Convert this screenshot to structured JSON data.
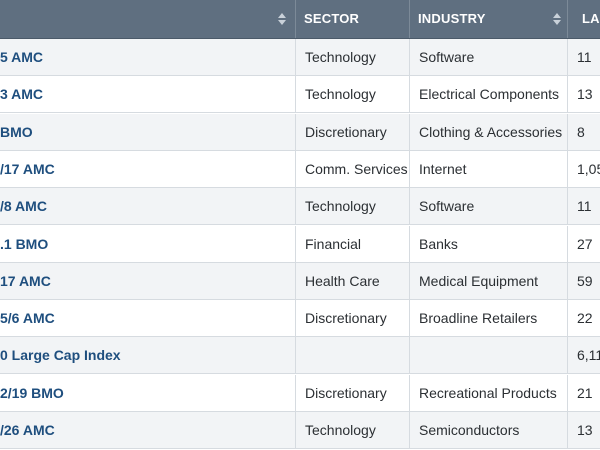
{
  "table": {
    "columns": [
      {
        "key": "name",
        "label": ""
      },
      {
        "key": "sector",
        "label": "SECTOR"
      },
      {
        "key": "industry",
        "label": "INDUSTRY"
      },
      {
        "key": "last",
        "label": "LA"
      }
    ],
    "rows": [
      {
        "name": "5 AMC",
        "sector": "Technology",
        "industry": "Software",
        "last": "11"
      },
      {
        "name": "3 AMC",
        "sector": "Technology",
        "industry": "Electrical Components",
        "last": "13"
      },
      {
        "name": " BMO",
        "sector": "Discretionary",
        "industry": "Clothing & Accessories",
        "last": "8"
      },
      {
        "name": "/17 AMC",
        "sector": "Comm. Services",
        "industry": "Internet",
        "last": "1,05"
      },
      {
        "name": "/8 AMC",
        "sector": "Technology",
        "industry": "Software",
        "last": "11"
      },
      {
        "name": ".1 BMO",
        "sector": "Financial",
        "industry": "Banks",
        "last": "27"
      },
      {
        "name": "17 AMC",
        "sector": "Health Care",
        "industry": "Medical Equipment",
        "last": "59"
      },
      {
        "name": "5/6 AMC",
        "sector": "Discretionary",
        "industry": "Broadline Retailers",
        "last": "22"
      },
      {
        "name": "0 Large Cap Index",
        "sector": "",
        "industry": "",
        "last": "6,11"
      },
      {
        "name": "2/19 BMO",
        "sector": "Discretionary",
        "industry": "Recreational Products",
        "last": "21"
      },
      {
        "name": "/26 AMC",
        "sector": "Technology",
        "industry": "Semiconductors",
        "last": "13"
      }
    ]
  }
}
